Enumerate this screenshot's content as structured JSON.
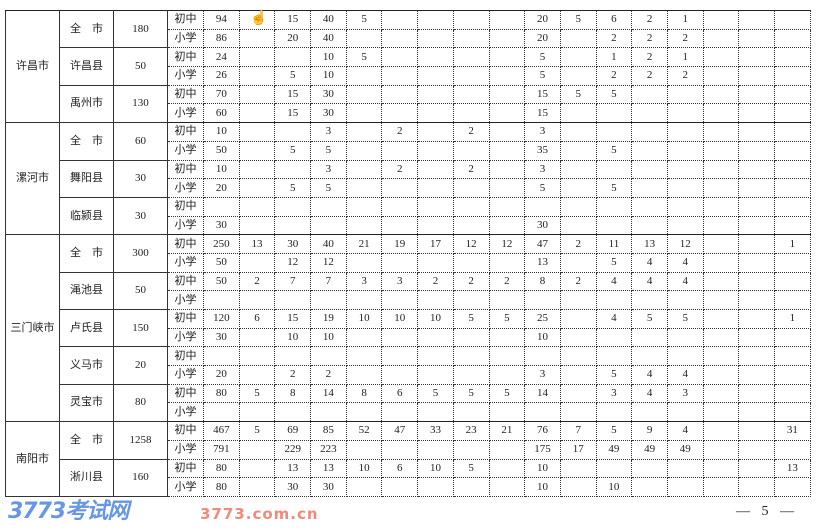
{
  "page_number": "— 5 —",
  "watermark": {
    "logo": "3773考试网",
    "url": "3773.com.cn"
  },
  "cursor_icon": "hand-pointer-icon",
  "levels": {
    "junior": "初中",
    "primary": "小学"
  },
  "cities": [
    {
      "name": "许昌市",
      "counties": [
        {
          "name": "全　市",
          "total": "180",
          "rows": [
            [
              "94",
              "",
              "15",
              "40",
              "5",
              "",
              "",
              "",
              "",
              "20",
              "5",
              "6",
              "2",
              "1",
              "",
              "",
              ""
            ],
            [
              "86",
              "",
              "20",
              "40",
              "",
              "",
              "",
              "",
              "",
              "20",
              "",
              "2",
              "2",
              "2",
              "",
              "",
              ""
            ]
          ]
        },
        {
          "name": "许昌县",
          "total": "50",
          "rows": [
            [
              "24",
              "",
              "",
              "10",
              "5",
              "",
              "",
              "",
              "",
              "5",
              "",
              "1",
              "2",
              "1",
              "",
              "",
              ""
            ],
            [
              "26",
              "",
              "5",
              "10",
              "",
              "",
              "",
              "",
              "",
              "5",
              "",
              "2",
              "2",
              "2",
              "",
              "",
              ""
            ]
          ]
        },
        {
          "name": "禹州市",
          "total": "130",
          "rows": [
            [
              "70",
              "",
              "15",
              "30",
              "",
              "",
              "",
              "",
              "",
              "15",
              "5",
              "5",
              "",
              "",
              "",
              "",
              ""
            ],
            [
              "60",
              "",
              "15",
              "30",
              "",
              "",
              "",
              "",
              "",
              "15",
              "",
              "",
              "",
              "",
              "",
              "",
              ""
            ]
          ]
        }
      ]
    },
    {
      "name": "漯河市",
      "counties": [
        {
          "name": "全　市",
          "total": "60",
          "rows": [
            [
              "10",
              "",
              "",
              "3",
              "",
              "2",
              "",
              "2",
              "",
              "3",
              "",
              "",
              "",
              "",
              "",
              "",
              ""
            ],
            [
              "50",
              "",
              "5",
              "5",
              "",
              "",
              "",
              "",
              "",
              "35",
              "",
              "5",
              "",
              "",
              "",
              "",
              ""
            ]
          ]
        },
        {
          "name": "舞阳县",
          "total": "30",
          "rows": [
            [
              "10",
              "",
              "",
              "3",
              "",
              "2",
              "",
              "2",
              "",
              "3",
              "",
              "",
              "",
              "",
              "",
              "",
              ""
            ],
            [
              "20",
              "",
              "5",
              "5",
              "",
              "",
              "",
              "",
              "",
              "5",
              "",
              "5",
              "",
              "",
              "",
              "",
              ""
            ]
          ]
        },
        {
          "name": "临颍县",
          "total": "30",
          "rows": [
            [
              "",
              "",
              "",
              "",
              "",
              "",
              "",
              "",
              "",
              "",
              "",
              "",
              "",
              "",
              "",
              "",
              ""
            ],
            [
              "30",
              "",
              "",
              "",
              "",
              "",
              "",
              "",
              "",
              "30",
              "",
              "",
              "",
              "",
              "",
              "",
              ""
            ]
          ]
        }
      ]
    },
    {
      "name": "三门峡市",
      "counties": [
        {
          "name": "全　市",
          "total": "300",
          "rows": [
            [
              "250",
              "13",
              "30",
              "40",
              "21",
              "19",
              "17",
              "12",
              "12",
              "47",
              "2",
              "11",
              "13",
              "12",
              "",
              "",
              "1"
            ],
            [
              "50",
              "",
              "12",
              "12",
              "",
              "",
              "",
              "",
              "",
              "13",
              "",
              "5",
              "4",
              "4",
              "",
              "",
              ""
            ]
          ]
        },
        {
          "name": "渑池县",
          "total": "50",
          "rows": [
            [
              "50",
              "2",
              "7",
              "7",
              "3",
              "3",
              "2",
              "2",
              "2",
              "8",
              "2",
              "4",
              "4",
              "4",
              "",
              "",
              ""
            ],
            [
              "",
              "",
              "",
              "",
              "",
              "",
              "",
              "",
              "",
              "",
              "",
              "",
              "",
              "",
              "",
              "",
              ""
            ]
          ]
        },
        {
          "name": "卢氏县",
          "total": "150",
          "rows": [
            [
              "120",
              "6",
              "15",
              "19",
              "10",
              "10",
              "10",
              "5",
              "5",
              "25",
              "",
              "4",
              "5",
              "5",
              "",
              "",
              "1"
            ],
            [
              "30",
              "",
              "10",
              "10",
              "",
              "",
              "",
              "",
              "",
              "10",
              "",
              "",
              "",
              "",
              "",
              "",
              ""
            ]
          ]
        },
        {
          "name": "义马市",
          "total": "20",
          "rows": [
            [
              "",
              "",
              "",
              "",
              "",
              "",
              "",
              "",
              "",
              "",
              "",
              "",
              "",
              "",
              "",
              "",
              ""
            ],
            [
              "20",
              "",
              "2",
              "2",
              "",
              "",
              "",
              "",
              "",
              "3",
              "",
              "5",
              "4",
              "4",
              "",
              "",
              ""
            ]
          ]
        },
        {
          "name": "灵宝市",
          "total": "80",
          "rows": [
            [
              "80",
              "5",
              "8",
              "14",
              "8",
              "6",
              "5",
              "5",
              "5",
              "14",
              "",
              "3",
              "4",
              "3",
              "",
              "",
              ""
            ],
            [
              "",
              "",
              "",
              "",
              "",
              "",
              "",
              "",
              "",
              "",
              "",
              "",
              "",
              "",
              "",
              "",
              ""
            ]
          ]
        }
      ]
    },
    {
      "name": "南阳市",
      "counties": [
        {
          "name": "全　市",
          "total": "1258",
          "rows": [
            [
              "467",
              "5",
              "69",
              "85",
              "52",
              "47",
              "33",
              "23",
              "21",
              "76",
              "7",
              "5",
              "9",
              "4",
              "",
              "",
              "31"
            ],
            [
              "791",
              "",
              "229",
              "223",
              "",
              "",
              "",
              "",
              "",
              "175",
              "17",
              "49",
              "49",
              "49",
              "",
              "",
              ""
            ]
          ]
        },
        {
          "name": "淅川县",
          "total": "160",
          "rows": [
            [
              "80",
              "",
              "13",
              "13",
              "10",
              "6",
              "10",
              "5",
              "",
              "10",
              "",
              "",
              "",
              "",
              "",
              "",
              "13"
            ],
            [
              "80",
              "",
              "30",
              "30",
              "",
              "",
              "",
              "",
              "",
              "10",
              "",
              "10",
              "",
              "",
              "",
              "",
              ""
            ]
          ]
        }
      ]
    }
  ]
}
